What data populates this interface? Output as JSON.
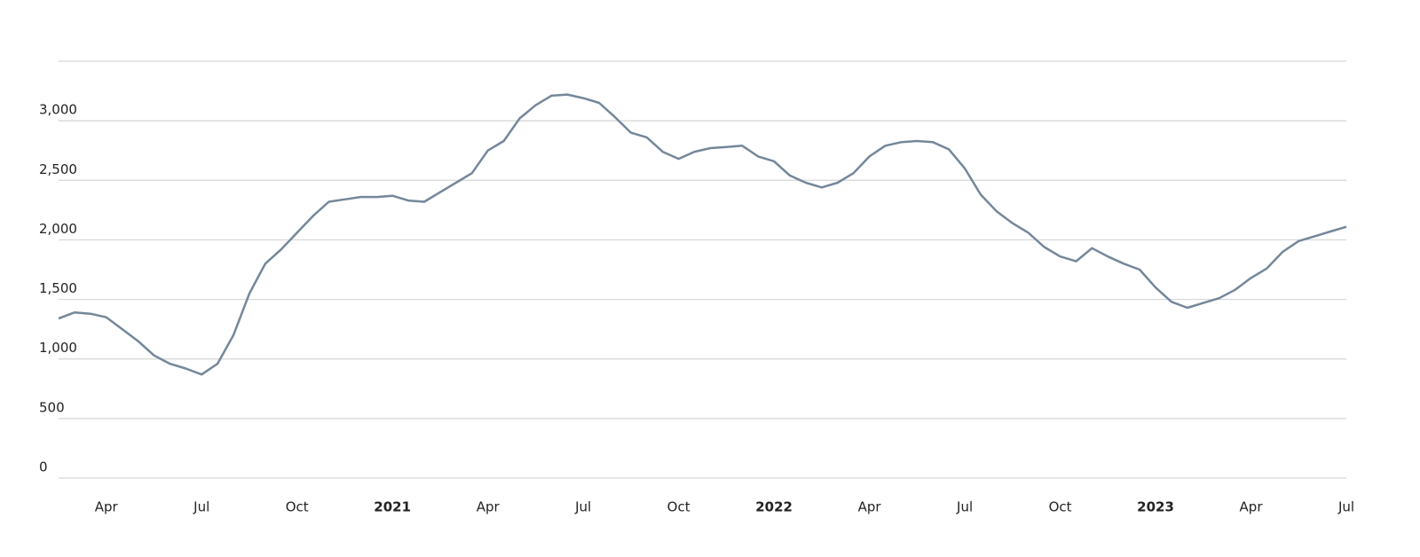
{
  "chart_data": {
    "type": "line",
    "categories": [
      null,
      null,
      null,
      "Apr",
      null,
      null,
      null,
      null,
      null,
      "Jul",
      null,
      null,
      null,
      null,
      null,
      "Oct",
      null,
      null,
      null,
      null,
      null,
      "2021",
      null,
      null,
      null,
      null,
      null,
      "Apr",
      null,
      null,
      null,
      null,
      null,
      "Jul",
      null,
      null,
      null,
      null,
      null,
      "Oct",
      null,
      null,
      null,
      null,
      null,
      "2022",
      null,
      null,
      null,
      null,
      null,
      "Apr",
      null,
      null,
      null,
      null,
      null,
      "Jul",
      null,
      null,
      null,
      null,
      null,
      "Oct",
      null,
      null,
      null,
      null,
      null,
      "2023",
      null,
      null,
      null,
      null,
      null,
      "Apr",
      null,
      null,
      null,
      null,
      null,
      "Jul"
    ],
    "series": [
      {
        "color": "#74879a",
        "values": [
          1340,
          1390,
          1380,
          1350,
          1250,
          1150,
          1030,
          960,
          920,
          870,
          960,
          1200,
          1550,
          1800,
          1920,
          2060,
          2200,
          2320,
          2340,
          2360,
          2360,
          2370,
          2330,
          2320,
          2400,
          2480,
          2560,
          2750,
          2830,
          3020,
          3130,
          3210,
          3220,
          3190,
          3150,
          3030,
          2900,
          2860,
          2740,
          2680,
          2740,
          2770,
          2780,
          2790,
          2700,
          2660,
          2540,
          2480,
          2440,
          2480,
          2560,
          2700,
          2790,
          2820,
          2830,
          2820,
          2760,
          2600,
          2380,
          2240,
          2140,
          2060,
          1940,
          1860,
          1820,
          1930,
          1860,
          1800,
          1750,
          1600,
          1480,
          1430,
          1470,
          1510,
          1580,
          1680,
          1760,
          1900,
          1990,
          2030,
          2070,
          2110
        ]
      }
    ],
    "ylim": [
      0,
      3500
    ],
    "yticks": [
      0,
      500,
      {
        "value": 1000,
        "label": "1,000"
      },
      {
        "value": 1500,
        "label": "1,500"
      },
      {
        "value": 2000,
        "label": "2,000"
      },
      {
        "value": 2500,
        "label": "2,500"
      },
      {
        "value": 3000,
        "label": "3,000"
      }
    ],
    "grid": true
  }
}
